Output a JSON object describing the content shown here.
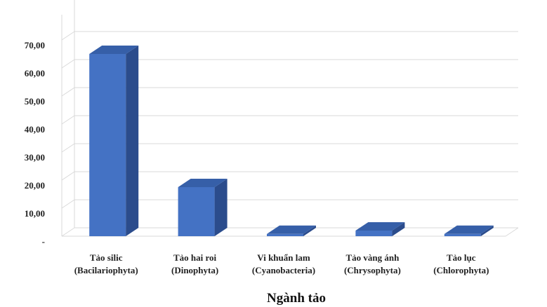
{
  "chart_data": {
    "type": "bar",
    "title": "",
    "xlabel": "Ngành tảo",
    "ylabel": "",
    "ylim": [
      0,
      70
    ],
    "y_ticks": [
      "-",
      "10,00",
      "20,00",
      "30,00",
      "40,00",
      "50,00",
      "60,00",
      "70,00"
    ],
    "categories": [
      [
        "Tảo silic",
        "(Bacilariophyta)"
      ],
      [
        "Tảo hai roi",
        "(Dinophyta)"
      ],
      [
        "Vi khuẩn lam",
        "(Cyanobacteria)"
      ],
      [
        "Tảo vàng ánh",
        "(Chrysophyta)"
      ],
      [
        "Tảo lục",
        "(Chlorophyta)"
      ]
    ],
    "values": [
      65.0,
      17.5,
      0.8,
      2.0,
      0.8
    ],
    "grid": true,
    "style": "3d-column",
    "colors": {
      "front": "#4472C4",
      "top": "#365FA8",
      "side": "#2B4C8C",
      "grid": "#D9D9D9"
    }
  }
}
